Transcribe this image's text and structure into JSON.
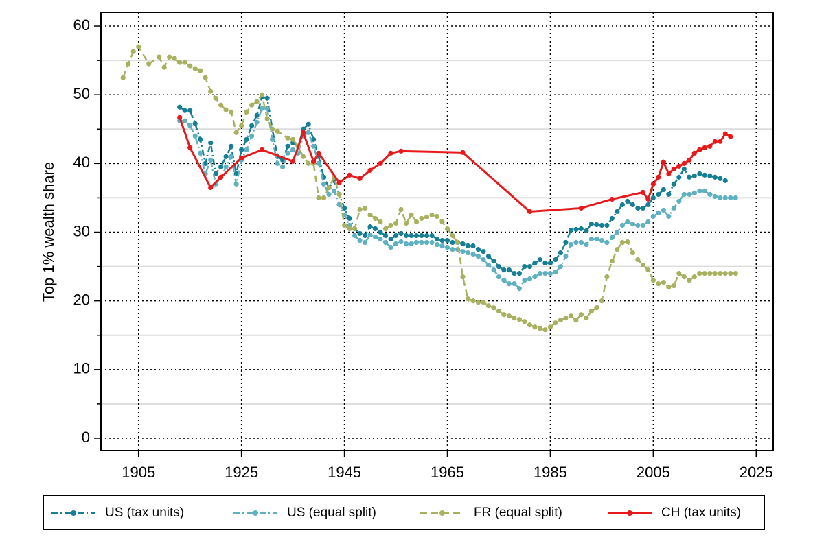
{
  "chart_data": {
    "type": "line",
    "ylabel": "Top 1% wealth share",
    "xlim": [
      1897.7,
      2028.3
    ],
    "xticks": [
      1905,
      1925,
      1945,
      1965,
      1985,
      2005,
      2025
    ],
    "ylim": [
      -1.8,
      62
    ],
    "yticks": [
      0,
      10,
      20,
      30,
      40,
      50,
      60
    ],
    "minor_yticks": [
      5,
      15,
      25,
      35,
      45,
      55
    ],
    "grid": true,
    "legend": "bottom",
    "series": [
      {
        "name": "US (tax units)",
        "color": "#167f93",
        "dash": "9 4 2 4",
        "x": [
          1913,
          1914,
          1915,
          1916,
          1917,
          1918,
          1919,
          1920,
          1921,
          1922,
          1923,
          1924,
          1925,
          1926,
          1927,
          1928,
          1929,
          1930,
          1931,
          1932,
          1933,
          1934,
          1935,
          1936,
          1937,
          1938,
          1939,
          1940,
          1941,
          1942,
          1943,
          1944,
          1945,
          1946,
          1947,
          1948,
          1949,
          1950,
          1951,
          1952,
          1953,
          1954,
          1955,
          1956,
          1957,
          1958,
          1959,
          1960,
          1961,
          1962,
          1963,
          1964,
          1965,
          1966,
          1967,
          1968,
          1969,
          1970,
          1971,
          1972,
          1973,
          1974,
          1975,
          1976,
          1977,
          1978,
          1979,
          1980,
          1981,
          1982,
          1983,
          1984,
          1985,
          1986,
          1987,
          1988,
          1989,
          1990,
          1991,
          1992,
          1993,
          1994,
          1995,
          1996,
          1997,
          1998,
          1999,
          2000,
          2001,
          2002,
          2003,
          2004,
          2005,
          2006,
          2007,
          2008,
          2009,
          2010,
          2011,
          2012,
          2013,
          2014,
          2015,
          2016,
          2017,
          2018,
          2019
        ],
        "values": [
          48.2,
          47.7,
          47.7,
          45.8,
          43.5,
          40.0,
          43.0,
          38.5,
          39.5,
          41.0,
          42.5,
          38.5,
          42.0,
          43.5,
          45.5,
          47.0,
          49.7,
          49.5,
          45.0,
          41.0,
          40.5,
          42.5,
          43.0,
          42.5,
          45.0,
          45.7,
          43.5,
          41.0,
          38.0,
          36.5,
          37.5,
          35.5,
          33.5,
          32.0,
          30.5,
          29.8,
          29.5,
          30.8,
          30.5,
          30.0,
          29.5,
          29.0,
          29.5,
          29.8,
          29.5,
          29.5,
          29.5,
          29.5,
          29.5,
          29.5,
          29.0,
          28.8,
          28.8,
          28.5,
          28.5,
          28.3,
          28.0,
          28.0,
          27.5,
          27.2,
          26.5,
          25.8,
          25.0,
          24.5,
          24.5,
          24.0,
          24.0,
          25.0,
          25.0,
          25.5,
          26.0,
          25.5,
          25.5,
          26.0,
          27.0,
          28.5,
          30.3,
          30.4,
          30.5,
          30.2,
          31.2,
          31.1,
          31.0,
          31.0,
          32.0,
          33.0,
          34.0,
          34.5,
          34.0,
          33.5,
          33.5,
          34.0,
          35.0,
          35.5,
          36.2,
          35.5,
          37.0,
          38.0,
          39.2,
          38.0,
          38.2,
          38.5,
          38.3,
          38.2,
          38.0,
          37.8,
          37.5
        ]
      },
      {
        "name": "US (equal split)",
        "color": "#5fb0c1",
        "dash": "9 4 2 4",
        "x": [
          1913,
          1914,
          1915,
          1916,
          1917,
          1918,
          1919,
          1920,
          1921,
          1922,
          1923,
          1924,
          1925,
          1926,
          1927,
          1928,
          1929,
          1930,
          1931,
          1932,
          1933,
          1934,
          1935,
          1936,
          1937,
          1938,
          1939,
          1940,
          1941,
          1942,
          1943,
          1944,
          1945,
          1946,
          1947,
          1948,
          1949,
          1950,
          1951,
          1952,
          1953,
          1954,
          1955,
          1956,
          1957,
          1958,
          1959,
          1960,
          1961,
          1962,
          1963,
          1964,
          1965,
          1966,
          1967,
          1968,
          1969,
          1970,
          1971,
          1972,
          1973,
          1974,
          1975,
          1976,
          1977,
          1978,
          1979,
          1980,
          1981,
          1982,
          1983,
          1984,
          1985,
          1986,
          1987,
          1988,
          1989,
          1990,
          1991,
          1992,
          1993,
          1994,
          1995,
          1996,
          1997,
          1998,
          1999,
          2000,
          2001,
          2002,
          2003,
          2004,
          2005,
          2006,
          2007,
          2008,
          2009,
          2010,
          2011,
          2012,
          2013,
          2014,
          2015,
          2016,
          2017,
          2018,
          2019,
          2020,
          2021
        ],
        "values": [
          46.2,
          46.2,
          45.5,
          44.0,
          41.5,
          38.5,
          40.5,
          37.0,
          38.0,
          39.5,
          41.0,
          37.0,
          40.5,
          42.0,
          44.0,
          46.0,
          48.0,
          48.0,
          43.5,
          40.0,
          39.5,
          41.5,
          42.0,
          41.5,
          44.0,
          44.5,
          42.5,
          40.0,
          37.0,
          35.5,
          36.0,
          34.0,
          32.5,
          31.0,
          29.5,
          28.8,
          28.5,
          29.6,
          29.3,
          29.0,
          28.5,
          27.8,
          28.3,
          28.6,
          28.3,
          28.3,
          28.5,
          28.5,
          28.5,
          28.5,
          28.2,
          28.0,
          27.8,
          27.5,
          27.5,
          27.2,
          27.0,
          26.8,
          26.5,
          26.0,
          25.2,
          24.5,
          23.5,
          23.0,
          22.5,
          22.5,
          21.8,
          23.0,
          23.2,
          23.5,
          24.0,
          24.0,
          24.0,
          24.2,
          25.0,
          26.5,
          28.2,
          28.5,
          28.5,
          28.2,
          29.0,
          29.0,
          28.8,
          28.5,
          29.2,
          30.0,
          31.0,
          31.5,
          31.2,
          31.0,
          31.0,
          31.5,
          32.3,
          32.8,
          33.2,
          32.3,
          33.5,
          34.5,
          35.5,
          35.5,
          35.7,
          36.0,
          36.0,
          35.5,
          35.2,
          35.0,
          35.0,
          35.0,
          35.0
        ]
      },
      {
        "name": "FR (equal split)",
        "color": "#a9b161",
        "dash": "10 6",
        "x": [
          1902,
          1903,
          1904,
          1905,
          1907,
          1909,
          1910,
          1911,
          1912,
          1913,
          1914,
          1915,
          1916,
          1917,
          1918,
          1919,
          1920,
          1921,
          1922,
          1923,
          1924,
          1925,
          1926,
          1927,
          1928,
          1929,
          1930,
          1931,
          1932,
          1934,
          1935,
          1936,
          1937,
          1938,
          1939,
          1940,
          1941,
          1942,
          1943,
          1944,
          1945,
          1946,
          1947,
          1948,
          1949,
          1950,
          1951,
          1952,
          1953,
          1954,
          1955,
          1956,
          1957,
          1958,
          1959,
          1960,
          1961,
          1962,
          1963,
          1964,
          1965,
          1966,
          1967,
          1968,
          1969,
          1970,
          1971,
          1972,
          1973,
          1974,
          1975,
          1976,
          1977,
          1978,
          1979,
          1980,
          1981,
          1982,
          1983,
          1984,
          1985,
          1986,
          1987,
          1988,
          1989,
          1990,
          1991,
          1992,
          1993,
          1994,
          1995,
          1996,
          1997,
          1998,
          1999,
          2000,
          2001,
          2002,
          2003,
          2004,
          2005,
          2006,
          2007,
          2008,
          2009,
          2010,
          2011,
          2012,
          2013,
          2014,
          2015,
          2016,
          2017,
          2018,
          2019,
          2020,
          2021
        ],
        "values": [
          52.5,
          54.5,
          56.3,
          57.0,
          54.5,
          55.5,
          54.0,
          55.5,
          55.3,
          54.7,
          54.7,
          54.2,
          53.8,
          53.5,
          52.5,
          50.5,
          49.5,
          48.5,
          47.8,
          47.5,
          44.5,
          45.5,
          47.5,
          48.5,
          49.0,
          50.0,
          46.5,
          45.0,
          44.7,
          43.7,
          43.5,
          42.5,
          41.0,
          40.0,
          40.0,
          35.0,
          35.0,
          36.5,
          38.0,
          35.5,
          31.0,
          30.5,
          30.5,
          33.3,
          33.5,
          32.5,
          32.0,
          31.5,
          30.5,
          31.0,
          31.3,
          33.3,
          31.3,
          32.5,
          31.5,
          32.0,
          32.2,
          32.5,
          32.3,
          31.5,
          30.5,
          29.5,
          28.5,
          23.5,
          20.3,
          20.0,
          19.8,
          19.8,
          19.3,
          19.0,
          18.5,
          18.0,
          17.8,
          17.5,
          17.3,
          17.0,
          16.5,
          16.2,
          16.0,
          15.8,
          16.2,
          16.8,
          17.2,
          17.5,
          17.8,
          17.2,
          18.0,
          17.5,
          18.5,
          19.0,
          20.0,
          23.5,
          25.8,
          27.5,
          28.5,
          28.6,
          27.0,
          26.0,
          25.2,
          24.5,
          23.0,
          22.5,
          22.7,
          22.0,
          22.2,
          24.0,
          23.5,
          23.0,
          23.5,
          24.0,
          24.0,
          24.0,
          24.0,
          24.0,
          24.0,
          24.0,
          24.0
        ]
      },
      {
        "name": "CH (tax units)",
        "color": "#e8191b",
        "dash": "none",
        "x": [
          1913,
          1915,
          1919,
          1921,
          1925,
          1929,
          1935,
          1937,
          1939,
          1940,
          1944,
          1946,
          1948,
          1950,
          1952,
          1954,
          1956,
          1968,
          1981,
          1991,
          1997,
          2003,
          2004,
          2005,
          2006,
          2007,
          2008,
          2009,
          2010,
          2011,
          2012,
          2013,
          2014,
          2015,
          2016,
          2017,
          2018,
          2019,
          2020
        ],
        "values": [
          46.7,
          42.3,
          36.5,
          38.0,
          40.8,
          42.0,
          40.3,
          44.5,
          40.3,
          41.5,
          37.2,
          38.3,
          37.8,
          39.0,
          40.0,
          41.5,
          41.8,
          41.6,
          33.0,
          33.5,
          34.8,
          35.8,
          34.8,
          37.0,
          38.0,
          40.2,
          38.5,
          39.2,
          39.6,
          40.0,
          40.5,
          41.5,
          42.0,
          42.3,
          42.5,
          43.2,
          43.2,
          44.3,
          43.9
        ]
      }
    ]
  }
}
